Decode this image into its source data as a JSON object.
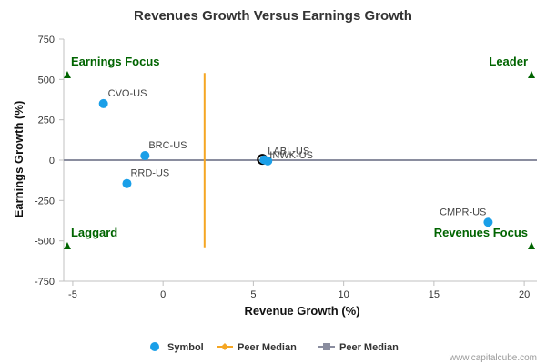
{
  "chart_data": {
    "type": "scatter",
    "title": "Revenues Growth Versus Earnings Growth",
    "xlabel": "Revenue Growth (%)",
    "ylabel": "Earnings Growth (%)",
    "xlim": [
      -5.5,
      20.7
    ],
    "ylim": [
      -750,
      750
    ],
    "x_ticks": [
      -5,
      0,
      5,
      10,
      15,
      20
    ],
    "y_ticks": [
      750,
      500,
      250,
      0,
      -250,
      -500,
      -750
    ],
    "grid": false,
    "legend_position": "bottom",
    "series": [
      {
        "name": "Symbol",
        "color": "#1a9fe8",
        "points": [
          {
            "label": "CVO-US",
            "x": -3.3,
            "y": 350
          },
          {
            "label": "BRC-US",
            "x": -1.0,
            "y": 28
          },
          {
            "label": "RRD-US",
            "x": -2.0,
            "y": -145
          },
          {
            "label": "LABL-US",
            "x": 5.6,
            "y": 2
          },
          {
            "label": "INWK-US",
            "x": 5.8,
            "y": -5
          },
          {
            "label": "CMPR-US",
            "x": 18.0,
            "y": -385
          }
        ]
      }
    ],
    "peer_median": {
      "name": "Peer Median",
      "x": 2.3,
      "y": 0,
      "x_color": "#f5a623",
      "y_color": "#8a8d9f",
      "highlight": {
        "x": 5.5,
        "y": 5
      }
    },
    "quadrants": [
      {
        "label": "Earnings Focus",
        "x": -5.3,
        "y": 530,
        "anchor": "start",
        "pos": "top-left"
      },
      {
        "label": "Leader",
        "x": 20.4,
        "y": 530,
        "anchor": "end",
        "pos": "top-right"
      },
      {
        "label": "Laggard",
        "x": -5.3,
        "y": -530,
        "anchor": "start",
        "pos": "bottom-left"
      },
      {
        "label": "Revenues Focus",
        "x": 20.4,
        "y": -530,
        "anchor": "end",
        "pos": "bottom-right"
      }
    ],
    "quadrant_color": "#006400",
    "legend": [
      {
        "label": "Symbol",
        "kind": "circle",
        "color": "#1a9fe8"
      },
      {
        "label": "Peer Median",
        "kind": "diamond-line",
        "color": "#f5a623"
      },
      {
        "label": "Peer Median",
        "kind": "square-line",
        "color": "#8a8d9f"
      }
    ]
  },
  "footer": {
    "watermark": "www.capitalcube.com"
  }
}
